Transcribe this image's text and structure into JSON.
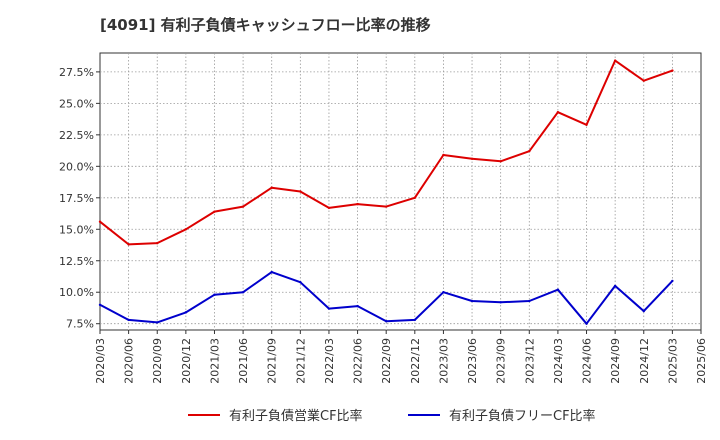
{
  "chart_data": {
    "type": "line",
    "title": "[4091]  有利子負債キャッシュフロー比率の推移",
    "x": [
      "2020/03",
      "2020/06",
      "2020/09",
      "2020/12",
      "2021/03",
      "2021/06",
      "2021/09",
      "2021/12",
      "2022/03",
      "2022/06",
      "2022/09",
      "2022/12",
      "2023/03",
      "2023/06",
      "2023/09",
      "2023/12",
      "2024/03",
      "2024/06",
      "2024/09",
      "2024/12",
      "2025/03",
      "2025/06"
    ],
    "ylim": [
      7.0,
      29.0
    ],
    "yticks": [
      "7.5%",
      "10.0%",
      "12.5%",
      "15.0%",
      "17.5%",
      "20.0%",
      "22.5%",
      "25.0%",
      "27.5%"
    ],
    "ytick_values": [
      7.5,
      10.0,
      12.5,
      15.0,
      17.5,
      20.0,
      22.5,
      25.0,
      27.5
    ],
    "grid": true,
    "legend_position": "bottom",
    "series": [
      {
        "name": "有利子負債営業CF比率",
        "color": "#dd0000",
        "values": [
          15.6,
          13.8,
          13.9,
          15.0,
          16.4,
          16.8,
          18.3,
          18.0,
          16.7,
          17.0,
          16.8,
          17.5,
          20.9,
          20.6,
          20.4,
          21.2,
          24.3,
          23.3,
          28.4,
          26.8,
          27.6,
          null
        ]
      },
      {
        "name": "有利子負債フリーCF比率",
        "color": "#0000cc",
        "values": [
          9.0,
          7.8,
          7.6,
          8.4,
          9.8,
          10.0,
          11.6,
          10.8,
          8.7,
          8.9,
          7.7,
          7.8,
          10.0,
          9.3,
          9.2,
          9.3,
          10.2,
          7.5,
          10.5,
          8.5,
          10.9,
          null
        ]
      }
    ]
  }
}
